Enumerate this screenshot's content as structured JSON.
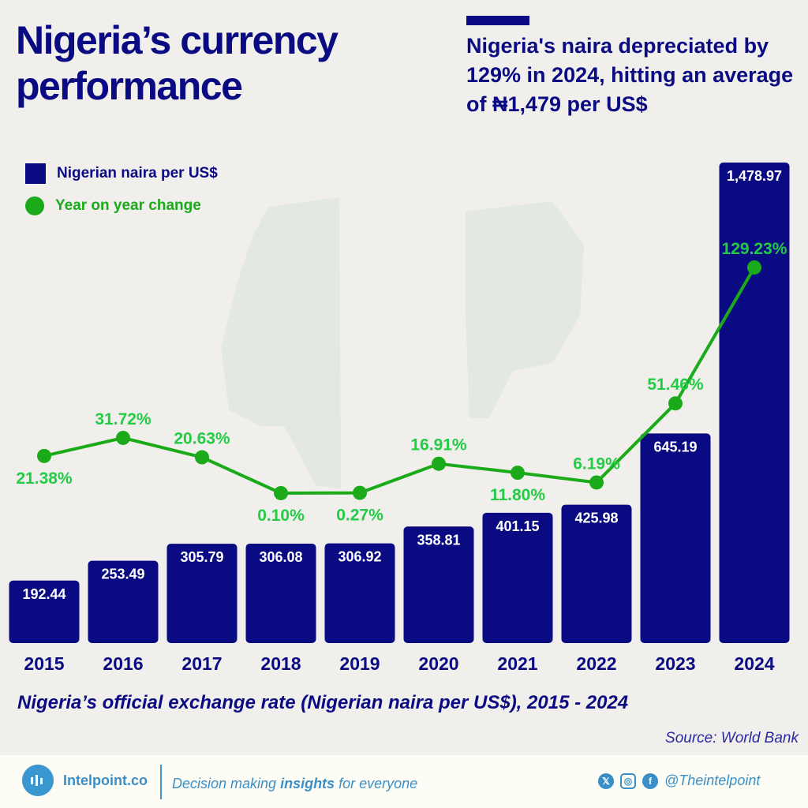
{
  "header": {
    "title": "Nigeria’s currency performance",
    "subtitle": "Nigeria's naira depreciated by 129% in 2024, hitting an average of ₦1,479 per US$"
  },
  "colors": {
    "bar": "#0a0a82",
    "line": "#1aaa1a",
    "line_label": "#22cc44",
    "background": "#f0efec"
  },
  "chart_data": {
    "type": "bar+line",
    "categories": [
      "2015",
      "2016",
      "2017",
      "2018",
      "2019",
      "2020",
      "2021",
      "2022",
      "2023",
      "2024"
    ],
    "series": [
      {
        "name": "Nigerian naira per US$",
        "type": "bar",
        "values": [
          192.44,
          253.49,
          305.79,
          306.08,
          306.92,
          358.81,
          401.15,
          425.98,
          645.19,
          1478.97
        ],
        "labels": [
          "192.44",
          "253.49",
          "305.79",
          "306.08",
          "306.92",
          "358.81",
          "401.15",
          "425.98",
          "645.19",
          "1,478.97"
        ]
      },
      {
        "name": "Year on year change",
        "type": "line",
        "values": [
          21.38,
          31.72,
          20.63,
          0.1,
          0.27,
          16.91,
          11.8,
          6.19,
          51.46,
          129.23
        ],
        "labels": [
          "21.38%",
          "31.72%",
          "20.63%",
          "0.10%",
          "0.27%",
          "16.91%",
          "11.80%",
          "6.19%",
          "51.46%",
          "129.23%"
        ]
      }
    ],
    "legend_position": "top-left",
    "grid": false
  },
  "caption": "Nigeria’s official exchange rate (Nigerian naira per US$), 2015 - 2024",
  "source": "Source: World Bank",
  "footer": {
    "brand": "Intelpoint.co",
    "tagline_pre": "Decision making ",
    "tagline_bold": "insights",
    "tagline_post": " for everyone",
    "handle": "@Theintelpoint",
    "icons": [
      "x-icon",
      "instagram-icon",
      "facebook-icon"
    ]
  }
}
